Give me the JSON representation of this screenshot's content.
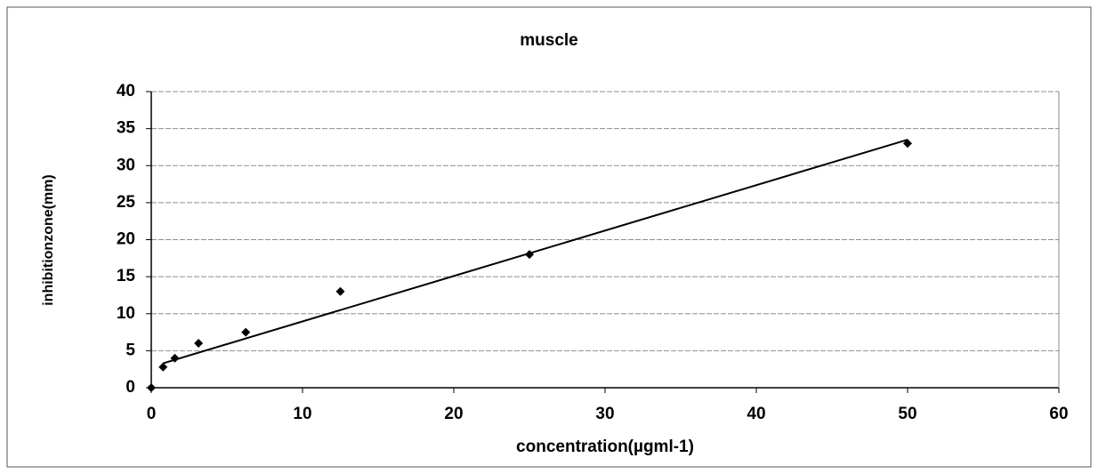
{
  "chart_data": {
    "type": "scatter",
    "title": "muscle",
    "x_label": "concentration(µgml-1)",
    "y_label": "inhibitionzone(mm)",
    "series": [
      {
        "name": "muscle",
        "color": "#000000",
        "x": [
          0,
          0.78,
          1.56,
          3.125,
          6.25,
          12.5,
          25,
          50
        ],
        "values": [
          0,
          2.8,
          4,
          6,
          7.5,
          13,
          18,
          33
        ]
      }
    ],
    "trendline": {
      "x": [
        0.78,
        50
      ],
      "y": [
        3.3,
        33.5
      ],
      "color": "#000000"
    },
    "xlim": [
      0,
      60
    ],
    "xticks": [
      0,
      10,
      20,
      30,
      40,
      50,
      60
    ],
    "ylim": [
      0,
      40
    ],
    "yticks": [
      0,
      5,
      10,
      15,
      20,
      25,
      30,
      35,
      40
    ],
    "grid": true
  }
}
